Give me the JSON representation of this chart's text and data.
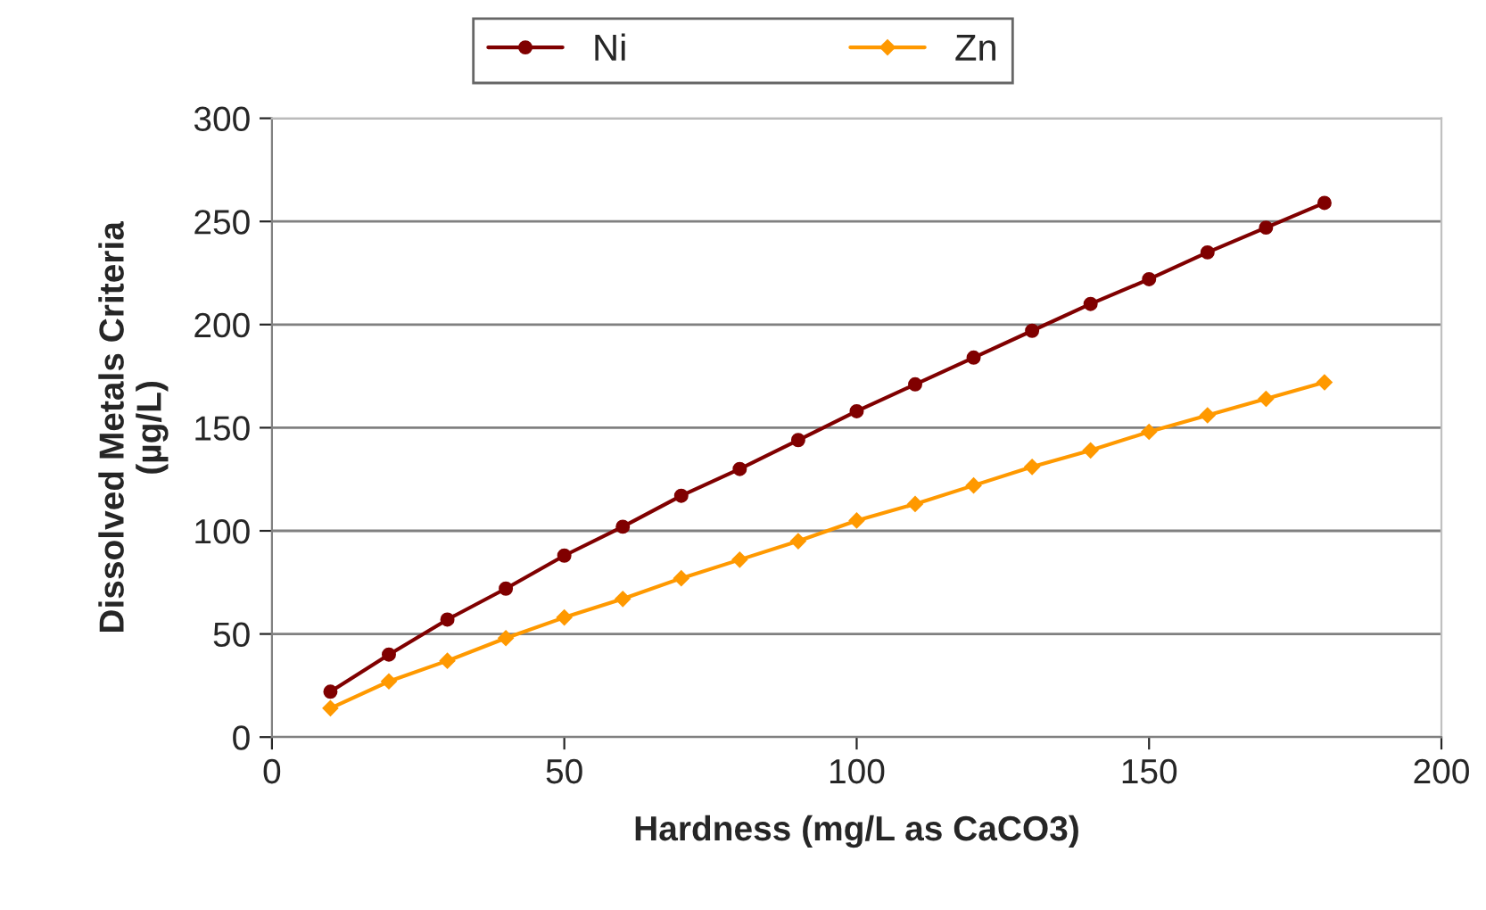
{
  "chart_data": {
    "type": "line",
    "xlabel": "Hardness (mg/L as CaCO3)",
    "ylabel": "Dissolved Metals Criteria\n(µg/L)",
    "x": [
      10,
      20,
      30,
      40,
      50,
      60,
      70,
      80,
      90,
      100,
      110,
      120,
      130,
      140,
      150,
      160,
      170,
      180
    ],
    "series": [
      {
        "name": "Ni",
        "color": "#800000",
        "marker": "circle",
        "values": [
          22,
          40,
          57,
          72,
          88,
          102,
          117,
          130,
          144,
          158,
          171,
          184,
          197,
          210,
          222,
          235,
          247,
          259
        ]
      },
      {
        "name": "Zn",
        "color": "#ff9900",
        "marker": "diamond",
        "values": [
          14,
          27,
          37,
          48,
          58,
          67,
          77,
          86,
          95,
          105,
          113,
          122,
          131,
          139,
          148,
          156,
          164,
          172
        ]
      }
    ],
    "xlim": [
      0,
      200
    ],
    "xticks": [
      0,
      50,
      100,
      150,
      200
    ],
    "ylim": [
      0,
      300
    ],
    "yticks": [
      0,
      50,
      100,
      150,
      200,
      250,
      300
    ],
    "grid": "y",
    "legend": "top",
    "line_style": "solid"
  }
}
